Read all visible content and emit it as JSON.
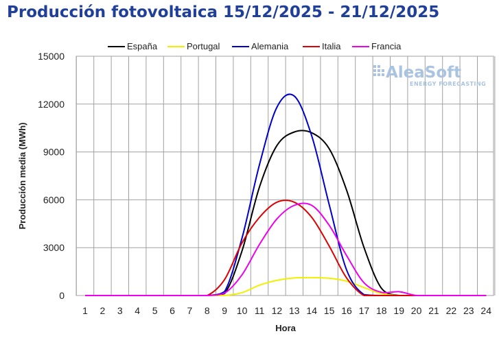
{
  "page": {
    "title": "Producción fotovoltaica 15/12/2025 - 21/12/2025"
  },
  "brand": {
    "name": "AleaSoft",
    "tagline": "ENERGY FORECASTING",
    "color": "#a9c3e0"
  },
  "chart_data": {
    "type": "line",
    "title": "Producción fotovoltaica 15/12/2025 - 21/12/2025",
    "xlabel": "Hora",
    "ylabel": "Producción media (MWh)",
    "xlim": [
      1,
      24
    ],
    "ylim": [
      0,
      15000
    ],
    "yticks": [
      0,
      3000,
      6000,
      9000,
      12000,
      15000
    ],
    "x": [
      1,
      2,
      3,
      4,
      5,
      6,
      7,
      8,
      9,
      10,
      11,
      12,
      13,
      14,
      15,
      16,
      17,
      18,
      19,
      20,
      21,
      22,
      23,
      24
    ],
    "grid": true,
    "legend_position": "top",
    "series": [
      {
        "name": "España",
        "color": "#000000",
        "values": [
          0,
          0,
          0,
          0,
          0,
          0,
          0,
          0,
          120,
          2800,
          6800,
          9400,
          10250,
          10200,
          9200,
          6600,
          3000,
          450,
          0,
          0,
          0,
          0,
          0,
          0
        ]
      },
      {
        "name": "Portugal",
        "color": "#f0f000",
        "values": [
          0,
          0,
          0,
          0,
          0,
          0,
          0,
          0,
          0,
          180,
          650,
          950,
          1100,
          1120,
          1080,
          900,
          500,
          120,
          0,
          0,
          0,
          0,
          0,
          0
        ]
      },
      {
        "name": "Alemania",
        "color": "#0000cc",
        "values": [
          0,
          0,
          0,
          0,
          0,
          0,
          0,
          0,
          250,
          3600,
          8200,
          11800,
          12500,
          10000,
          5700,
          1600,
          50,
          0,
          0,
          0,
          0,
          0,
          0,
          0
        ]
      },
      {
        "name": "Italia",
        "color": "#dd0000",
        "values": [
          0,
          0,
          0,
          0,
          0,
          0,
          0,
          0,
          1000,
          3300,
          4900,
          5850,
          5850,
          4900,
          3100,
          1100,
          0,
          0,
          0,
          0,
          0,
          0,
          0,
          0
        ]
      },
      {
        "name": "Francia",
        "color": "#ee00ee",
        "values": [
          0,
          0,
          0,
          0,
          0,
          0,
          0,
          0,
          150,
          1300,
          3200,
          4800,
          5650,
          5650,
          4400,
          2500,
          800,
          200,
          240,
          0,
          0,
          0,
          0,
          0
        ]
      }
    ]
  }
}
